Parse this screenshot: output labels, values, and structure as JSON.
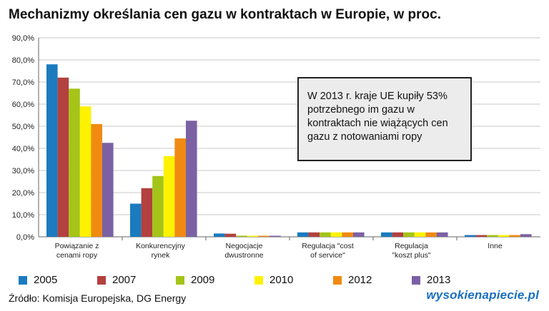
{
  "title": "Mechanizmy określania cen gazu w kontraktach w Europie, w proc.",
  "callout": "W 2013 r. kraje UE kupiły 53% potrzebnego im gazu w kontraktach nie wiążących cen gazu z notowaniami ropy",
  "source": "Źródło: Komisja Europejska, DG Energy",
  "logo": "wysokienapiecie.pl",
  "chart_data": {
    "type": "bar",
    "categories": [
      [
        "Powiązanie z",
        "cenami ropy"
      ],
      [
        "Konkurencyjny",
        "rynek"
      ],
      [
        "Negocjacje",
        "dwustronne"
      ],
      [
        "Regulacja \"cost",
        "of service\""
      ],
      [
        "Regulacja",
        "\"koszt plus\""
      ],
      [
        "Inne"
      ]
    ],
    "series": [
      {
        "name": "2005",
        "color": "#1a7bbf",
        "values": [
          78,
          15,
          1.5,
          2,
          2,
          0.8
        ]
      },
      {
        "name": "2007",
        "color": "#b2413f",
        "values": [
          72,
          22,
          1.4,
          2,
          2,
          0.8
        ]
      },
      {
        "name": "2009",
        "color": "#a4c417",
        "values": [
          67,
          27.5,
          0.5,
          2,
          2,
          0.8
        ]
      },
      {
        "name": "2010",
        "color": "#fff200",
        "values": [
          59,
          36.5,
          0.3,
          2,
          2,
          0.8
        ]
      },
      {
        "name": "2012",
        "color": "#f08a12",
        "values": [
          51,
          44.5,
          0.2,
          2,
          2,
          0.8
        ]
      },
      {
        "name": "2013",
        "color": "#7b61a4",
        "values": [
          42.5,
          52.5,
          0.1,
          2,
          2,
          1.2
        ]
      }
    ],
    "yticks": [
      "0,0%",
      "10,0%",
      "20,0%",
      "30,0%",
      "40,0%",
      "50,0%",
      "60,0%",
      "70,0%",
      "80,0%",
      "90,0%"
    ],
    "ylim": [
      0,
      90
    ],
    "grid": true,
    "legend_position": "bottom"
  }
}
